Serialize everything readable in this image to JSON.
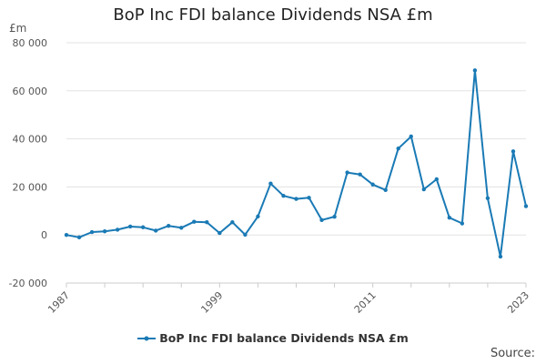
{
  "chart_data": {
    "type": "line",
    "title": "BoP Inc FDI balance Dividends NSA £m",
    "ylabel": "£m",
    "xlabel": "",
    "ylim": [
      -20000,
      80000
    ],
    "y_ticks": [
      "-20 000",
      "0",
      "20 000",
      "40 000",
      "60 000",
      "80 000"
    ],
    "y_tick_values": [
      -20000,
      0,
      20000,
      40000,
      60000,
      80000
    ],
    "x_ticks": [
      "1987",
      "1999",
      "2011",
      "2023"
    ],
    "x_tick_values": [
      1987,
      1999,
      2011,
      2023
    ],
    "grid": "horizontal",
    "legend_position": "bottom",
    "series": [
      {
        "name": "BoP Inc FDI balance Dividends NSA £m",
        "color": "#1a7ab5",
        "x": [
          1987,
          1988,
          1989,
          1990,
          1991,
          1992,
          1993,
          1994,
          1995,
          1996,
          1997,
          1998,
          1999,
          2000,
          2001,
          2002,
          2003,
          2004,
          2005,
          2006,
          2007,
          2008,
          2009,
          2010,
          2011,
          2012,
          2013,
          2014,
          2015,
          2016,
          2017,
          2018,
          2019,
          2020,
          2021,
          2022,
          2023
        ],
        "values": [
          0,
          -1000,
          1200,
          1500,
          2200,
          3500,
          3200,
          1800,
          3800,
          3000,
          5500,
          5300,
          800,
          5300,
          100,
          7700,
          21400,
          16300,
          15000,
          15500,
          6200,
          7600,
          26000,
          25200,
          21000,
          18700,
          36000,
          41000,
          19000,
          23200,
          7200,
          4800,
          68500,
          15300,
          -9000,
          34800,
          12000
        ]
      }
    ]
  },
  "source_label": "Source:"
}
